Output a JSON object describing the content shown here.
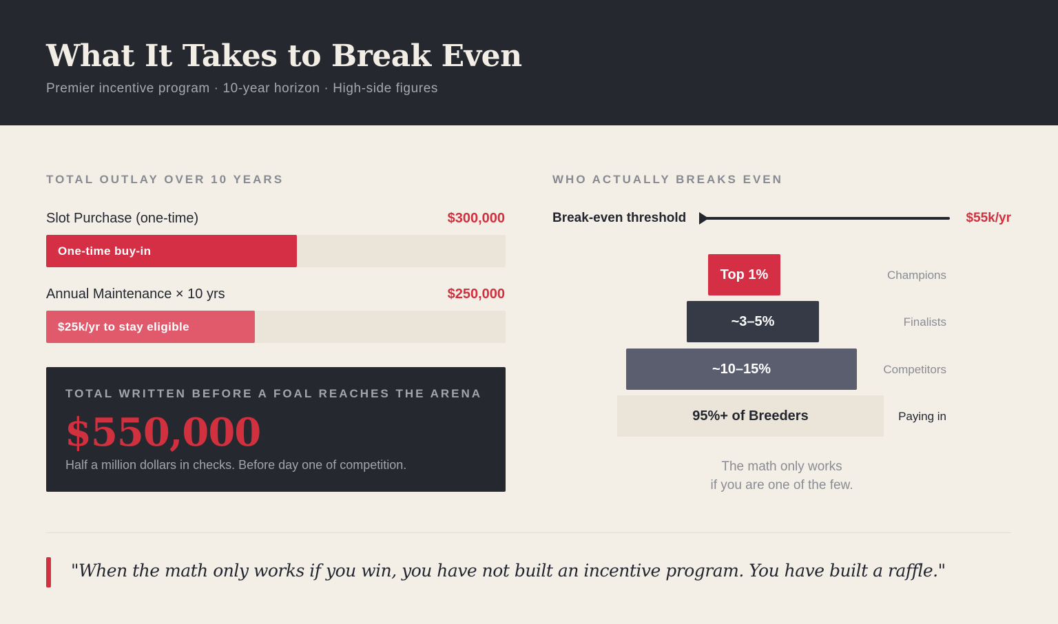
{
  "header": {
    "title": "What It Takes to Break Even",
    "subtitle": "Premier incentive program · 10-year horizon · High-side figures"
  },
  "outlay": {
    "section_label": "TOTAL OUTLAY OVER 10 YEARS",
    "items": [
      {
        "label": "Slot Purchase (one-time)",
        "amount": "$300,000",
        "value": 300000,
        "bar_text": "One-time buy-in",
        "color": "#d42f45"
      },
      {
        "label": "Annual Maintenance × 10 yrs",
        "amount": "$250,000",
        "value": 250000,
        "bar_text": "$25k/yr to stay eligible",
        "color": "#e05a6c"
      }
    ],
    "total": {
      "label": "TOTAL WRITTEN BEFORE A FOAL REACHES THE ARENA",
      "value": "$550,000",
      "caption": "Half a million dollars in checks. Before day one of competition."
    }
  },
  "breakeven": {
    "section_label": "WHO ACTUALLY BREAKS EVEN",
    "threshold_label": "Break-even threshold",
    "threshold_value": "$55k/yr",
    "tiers": [
      {
        "share": "Top 1%",
        "name": "Champions",
        "bg": "#d42f45",
        "fg": "#ffffff",
        "name_color": "#8a8c93"
      },
      {
        "share": "~3–5%",
        "name": "Finalists",
        "bg": "#363a47",
        "fg": "#ffffff",
        "name_color": "#8a8c93"
      },
      {
        "share": "~10–15%",
        "name": "Competitors",
        "bg": "#5a5e6f",
        "fg": "#ffffff",
        "name_color": "#8a8c93"
      },
      {
        "share": "95%+ of Breeders",
        "name": "Paying in",
        "bg": "#ebe4d8",
        "fg": "#23262f",
        "name_color": "#23262f"
      }
    ],
    "note_line1": "The math only works",
    "note_line2": "if you are one of the few."
  },
  "quote": "\"When the math only works if you win, you have not built an incentive program. You have built a raffle.\"",
  "chart_data": [
    {
      "type": "bar",
      "title": "TOTAL OUTLAY OVER 10 YEARS",
      "categories": [
        "Slot Purchase (one-time)",
        "Annual Maintenance × 10 yrs"
      ],
      "values": [
        300000,
        250000
      ],
      "xlim": [
        0,
        550000
      ],
      "total": 550000
    },
    {
      "type": "bar",
      "title": "WHO ACTUALLY BREAKS EVEN",
      "categories": [
        "Champions",
        "Finalists",
        "Competitors",
        "Paying in"
      ],
      "labels": [
        "Top 1%",
        "~3–5%",
        "~10–15%",
        "95%+ of Breeders"
      ],
      "threshold": "$55k/yr"
    }
  ]
}
